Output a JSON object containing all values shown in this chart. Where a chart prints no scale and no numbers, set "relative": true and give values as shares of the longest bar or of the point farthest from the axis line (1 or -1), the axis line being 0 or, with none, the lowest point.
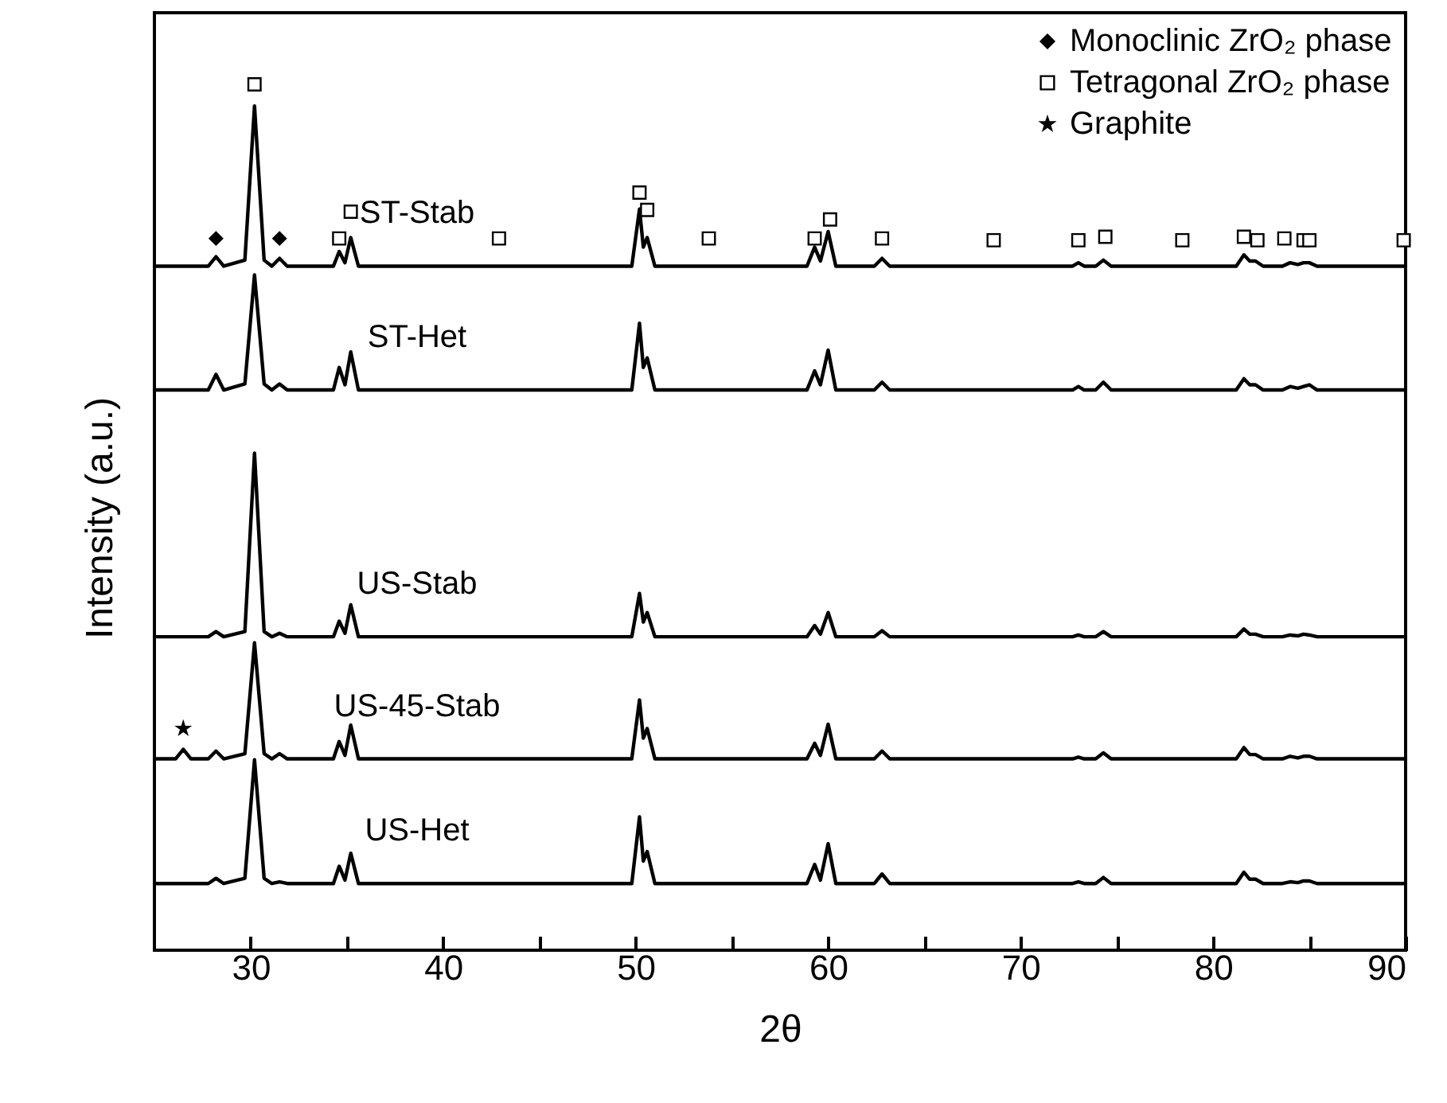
{
  "chart_data": {
    "type": "line",
    "xlabel": "2θ",
    "ylabel": "Intensity (a.u.)",
    "relative": true,
    "tick_labels": "x",
    "legend": "top right",
    "xlim": [
      25,
      90
    ],
    "xticks": [
      30,
      {
        "value": 35,
        "label": null
      },
      40,
      {
        "value": 45,
        "label": null
      },
      50,
      {
        "value": 55,
        "label": null
      },
      60,
      {
        "value": 65,
        "label": null
      },
      70,
      {
        "value": 75,
        "label": null
      },
      80,
      {
        "value": 85,
        "label": null
      },
      90
    ],
    "x": [
      25.0,
      26.1,
      26.5,
      26.9,
      27.8,
      28.2,
      28.6,
      29.7,
      30.2,
      30.7,
      31.1,
      31.5,
      31.9,
      34.3,
      34.6,
      34.9,
      35.2,
      35.6,
      49.8,
      50.2,
      50.4,
      50.6,
      51.0,
      58.9,
      59.3,
      59.6,
      60.0,
      60.4,
      62.4,
      62.8,
      63.2,
      72.7,
      73.0,
      73.3,
      73.9,
      74.3,
      74.7,
      81.2,
      81.6,
      81.9,
      82.2,
      82.6,
      83.6,
      84.0,
      84.4,
      84.7,
      85.0,
      85.4,
      90.0
    ],
    "series": [
      {
        "name": "ST-Stab",
        "type": "line",
        "color": "#000000",
        "values": [
          0.79,
          0.79,
          0.79,
          0.79,
          0.79,
          0.801,
          0.79,
          0.797,
          0.975,
          0.797,
          0.79,
          0.799,
          0.79,
          0.79,
          0.807,
          0.794,
          0.823,
          0.79,
          0.79,
          0.856,
          0.812,
          0.823,
          0.79,
          0.79,
          0.812,
          0.796,
          0.83,
          0.79,
          0.79,
          0.799,
          0.79,
          0.79,
          0.794,
          0.79,
          0.79,
          0.797,
          0.79,
          0.79,
          0.803,
          0.796,
          0.796,
          0.79,
          0.79,
          0.794,
          0.792,
          0.794,
          0.794,
          0.79,
          0.79
        ]
      },
      {
        "name": "ST-Het",
        "type": "line",
        "color": "#000000",
        "values": [
          0.647,
          0.647,
          0.647,
          0.647,
          0.647,
          0.665,
          0.647,
          0.654,
          0.78,
          0.654,
          0.647,
          0.654,
          0.647,
          0.647,
          0.673,
          0.653,
          0.691,
          0.647,
          0.647,
          0.724,
          0.673,
          0.684,
          0.647,
          0.647,
          0.669,
          0.653,
          0.693,
          0.647,
          0.647,
          0.656,
          0.647,
          0.647,
          0.651,
          0.647,
          0.647,
          0.656,
          0.647,
          0.647,
          0.66,
          0.653,
          0.653,
          0.647,
          0.647,
          0.651,
          0.649,
          0.651,
          0.653,
          0.647,
          0.647
        ]
      },
      {
        "name": "US-Stab",
        "type": "line",
        "color": "#000000",
        "values": [
          0.362,
          0.362,
          0.362,
          0.362,
          0.362,
          0.368,
          0.362,
          0.368,
          0.574,
          0.368,
          0.362,
          0.366,
          0.362,
          0.362,
          0.38,
          0.366,
          0.399,
          0.362,
          0.362,
          0.412,
          0.379,
          0.39,
          0.362,
          0.362,
          0.375,
          0.365,
          0.39,
          0.362,
          0.362,
          0.369,
          0.362,
          0.362,
          0.364,
          0.362,
          0.362,
          0.368,
          0.362,
          0.362,
          0.371,
          0.365,
          0.365,
          0.362,
          0.362,
          0.364,
          0.363,
          0.365,
          0.364,
          0.362,
          0.362
        ]
      },
      {
        "name": "US-45-Stab",
        "type": "line",
        "color": "#000000",
        "values": [
          0.221,
          0.221,
          0.232,
          0.221,
          0.221,
          0.23,
          0.221,
          0.227,
          0.355,
          0.227,
          0.221,
          0.227,
          0.221,
          0.221,
          0.241,
          0.225,
          0.26,
          0.221,
          0.221,
          0.289,
          0.245,
          0.256,
          0.221,
          0.221,
          0.239,
          0.225,
          0.261,
          0.221,
          0.221,
          0.23,
          0.221,
          0.221,
          0.223,
          0.221,
          0.221,
          0.228,
          0.221,
          0.221,
          0.234,
          0.226,
          0.226,
          0.221,
          0.221,
          0.224,
          0.222,
          0.224,
          0.224,
          0.221,
          0.221
        ]
      },
      {
        "name": "US-Het",
        "type": "line",
        "color": "#000000",
        "values": [
          0.077,
          0.077,
          0.077,
          0.077,
          0.077,
          0.083,
          0.077,
          0.083,
          0.22,
          0.083,
          0.077,
          0.079,
          0.077,
          0.077,
          0.097,
          0.081,
          0.112,
          0.077,
          0.077,
          0.154,
          0.103,
          0.114,
          0.077,
          0.077,
          0.099,
          0.081,
          0.123,
          0.077,
          0.077,
          0.088,
          0.077,
          0.077,
          0.079,
          0.077,
          0.077,
          0.084,
          0.077,
          0.077,
          0.09,
          0.082,
          0.082,
          0.077,
          0.077,
          0.079,
          0.078,
          0.08,
          0.08,
          0.077,
          0.077
        ]
      },
      {
        "name": "Monoclinic ZrO₂ phase",
        "type": "scatter",
        "marker": "diamond",
        "color": "#000000",
        "x": [
          28.2,
          31.5
        ],
        "values": [
          0.822,
          0.822
        ]
      },
      {
        "name": "Tetragonal ZrO₂ phase",
        "type": "scatter",
        "marker": "square",
        "color": "#000000",
        "x": [
          30.2,
          34.6,
          35.2,
          42.9,
          50.2,
          50.6,
          53.8,
          59.3,
          60.1,
          62.8,
          68.6,
          73.0,
          74.4,
          78.4,
          81.6,
          82.3,
          83.7,
          84.7,
          85.0,
          89.9
        ],
        "values": [
          1.0,
          0.822,
          0.853,
          0.822,
          0.875,
          0.855,
          0.822,
          0.822,
          0.844,
          0.822,
          0.82,
          0.82,
          0.824,
          0.82,
          0.824,
          0.82,
          0.822,
          0.82,
          0.82,
          0.82
        ]
      },
      {
        "name": "Graphite",
        "type": "scatter",
        "marker": "star",
        "color": "#000000",
        "x": [
          26.5
        ],
        "values": [
          0.256
        ]
      }
    ]
  }
}
